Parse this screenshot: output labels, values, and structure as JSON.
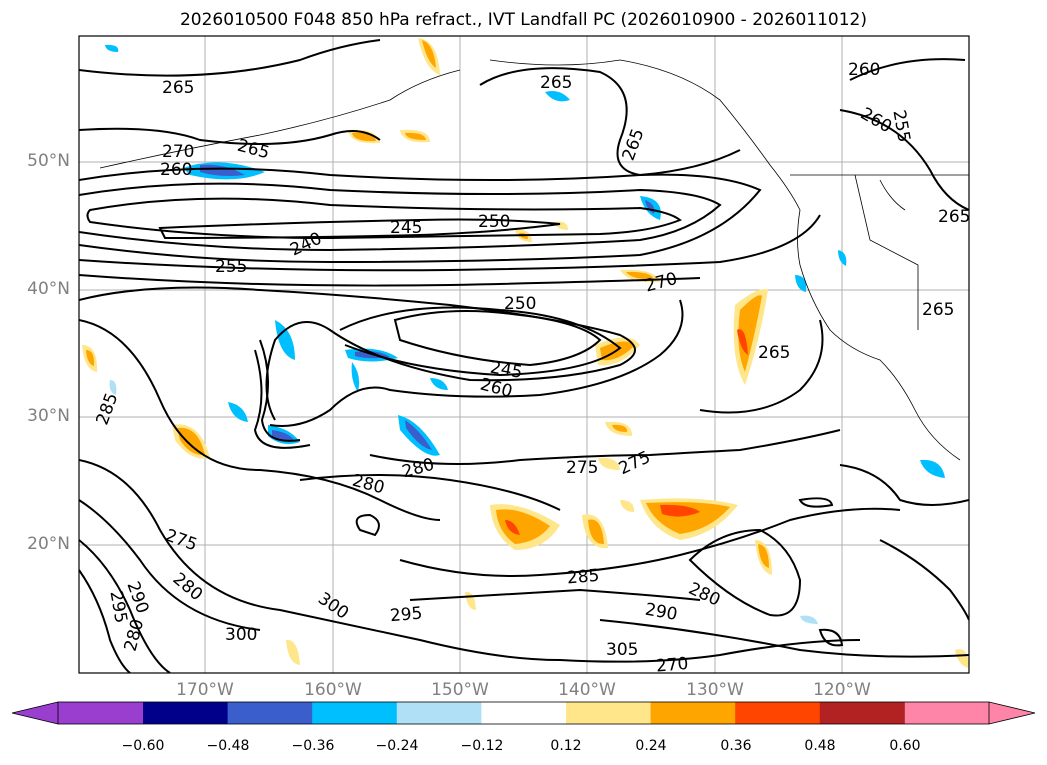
{
  "title": "2026010500 F048 850 hPa refract., IVT Landfall PC (2026010900 - 2026011012)",
  "lat_labels": [
    "50°N",
    "40°N",
    "30°N",
    "20°N"
  ],
  "lon_labels": [
    "170°W",
    "160°W",
    "150°W",
    "140°W",
    "130°W",
    "120°W"
  ],
  "contour_labels": [
    "265",
    "265",
    "265",
    "265",
    "260",
    "260",
    "255",
    "270",
    "260",
    "265",
    "245",
    "250",
    "240",
    "255",
    "250",
    "245",
    "260",
    "270",
    "265",
    "265",
    "285",
    "280",
    "275",
    "275",
    "280",
    "275",
    "285",
    "290",
    "280",
    "295",
    "300",
    "300",
    "305",
    "270",
    "280",
    "290",
    "295",
    "280"
  ],
  "colorbar": {
    "ticks": [
      "−0.60",
      "−0.48",
      "−0.36",
      "−0.24",
      "−0.12",
      "0.12",
      "0.24",
      "0.36",
      "0.48",
      "0.60"
    ],
    "colors": [
      "#9a3ed0",
      "#00008b",
      "#3a5fcd",
      "#00bfff",
      "#b0e0f6",
      "#ffffff",
      "#ffe68a",
      "#ffa500",
      "#ff4500",
      "#b22222",
      "#ff85a8"
    ]
  }
}
